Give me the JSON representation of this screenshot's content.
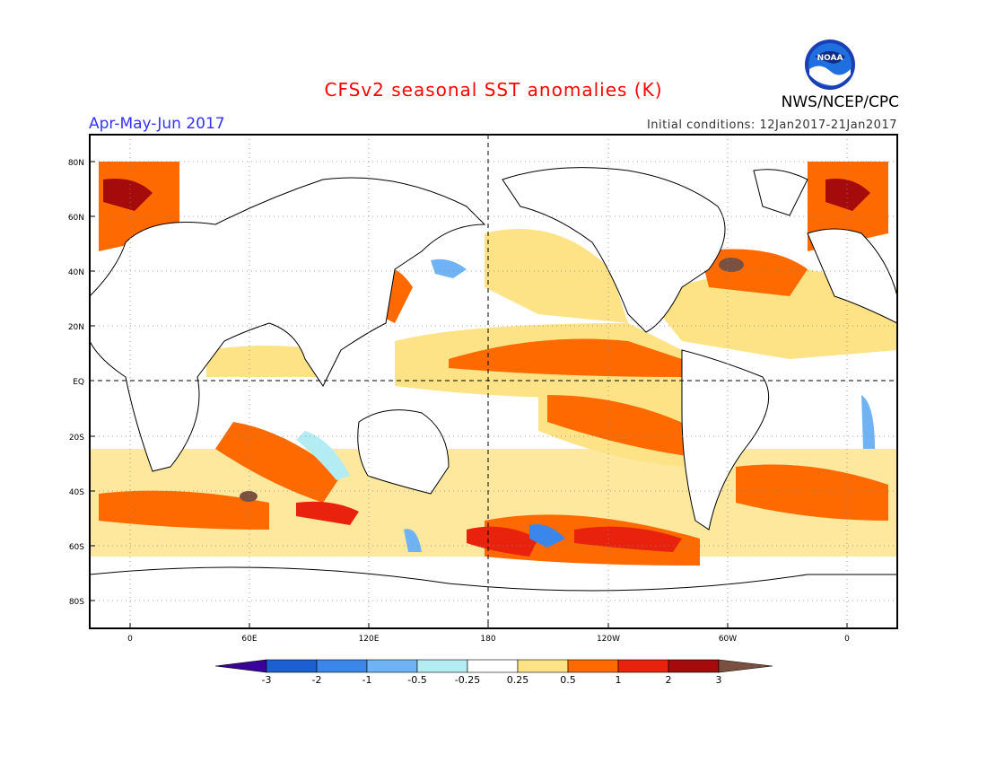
{
  "header": {
    "title": "CFSv2 seasonal SST anomalies (K)",
    "period": "Apr-May-Jun 2017",
    "initial_conditions": "Initial conditions: 12Jan2017-21Jan2017",
    "organization": "NWS/NCEP/CPC",
    "logo_text": "NOAA"
  },
  "map": {
    "lat_labels": [
      "80N",
      "60N",
      "40N",
      "20N",
      "EQ",
      "20S",
      "40S",
      "60S",
      "80S"
    ],
    "lon_labels": [
      "0",
      "60E",
      "120E",
      "180",
      "120W",
      "60W",
      "0"
    ]
  },
  "colorbar": {
    "labels": [
      "-3",
      "-2",
      "-1",
      "-0.5",
      "-0.25",
      "0.25",
      "0.5",
      "1",
      "2",
      "3"
    ],
    "colors": [
      "#3a009a",
      "#1c5fd3",
      "#3a86ea",
      "#6fb3f4",
      "#b4ecf4",
      "#ffffff",
      "#fde286",
      "#ff6a00",
      "#e8220d",
      "#a50b0b",
      "#7a5140"
    ]
  }
}
